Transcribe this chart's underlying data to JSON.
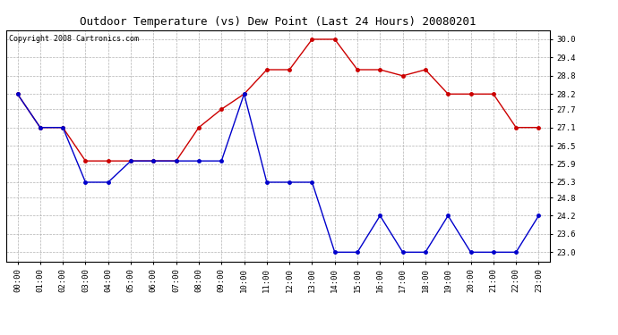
{
  "title": "Outdoor Temperature (vs) Dew Point (Last 24 Hours) 20080201",
  "copyright": "Copyright 2008 Cartronics.com",
  "hours": [
    "00:00",
    "01:00",
    "02:00",
    "03:00",
    "04:00",
    "05:00",
    "06:00",
    "07:00",
    "08:00",
    "09:00",
    "10:00",
    "11:00",
    "12:00",
    "13:00",
    "14:00",
    "15:00",
    "16:00",
    "17:00",
    "18:00",
    "19:00",
    "20:00",
    "21:00",
    "22:00",
    "23:00"
  ],
  "temp": [
    28.2,
    27.1,
    27.1,
    26.0,
    26.0,
    26.0,
    26.0,
    26.0,
    27.1,
    27.7,
    28.2,
    29.0,
    29.0,
    30.0,
    30.0,
    29.0,
    29.0,
    28.8,
    29.0,
    28.2,
    28.2,
    28.2,
    27.1,
    27.1
  ],
  "dew": [
    28.2,
    27.1,
    27.1,
    25.3,
    25.3,
    26.0,
    26.0,
    26.0,
    26.0,
    26.0,
    28.2,
    25.3,
    25.3,
    25.3,
    23.0,
    23.0,
    24.2,
    23.0,
    23.0,
    24.2,
    23.0,
    23.0,
    23.0,
    24.2
  ],
  "temp_color": "#cc0000",
  "dew_color": "#0000cc",
  "bg_color": "#ffffff",
  "grid_color": "#aaaaaa",
  "ylim_min": 22.7,
  "ylim_max": 30.3,
  "yticks": [
    23.0,
    23.6,
    24.2,
    24.8,
    25.3,
    25.9,
    26.5,
    27.1,
    27.7,
    28.2,
    28.8,
    29.4,
    30.0
  ],
  "title_fontsize": 9,
  "copyright_fontsize": 6,
  "tick_fontsize": 6.5,
  "ytick_fontsize": 6.5
}
